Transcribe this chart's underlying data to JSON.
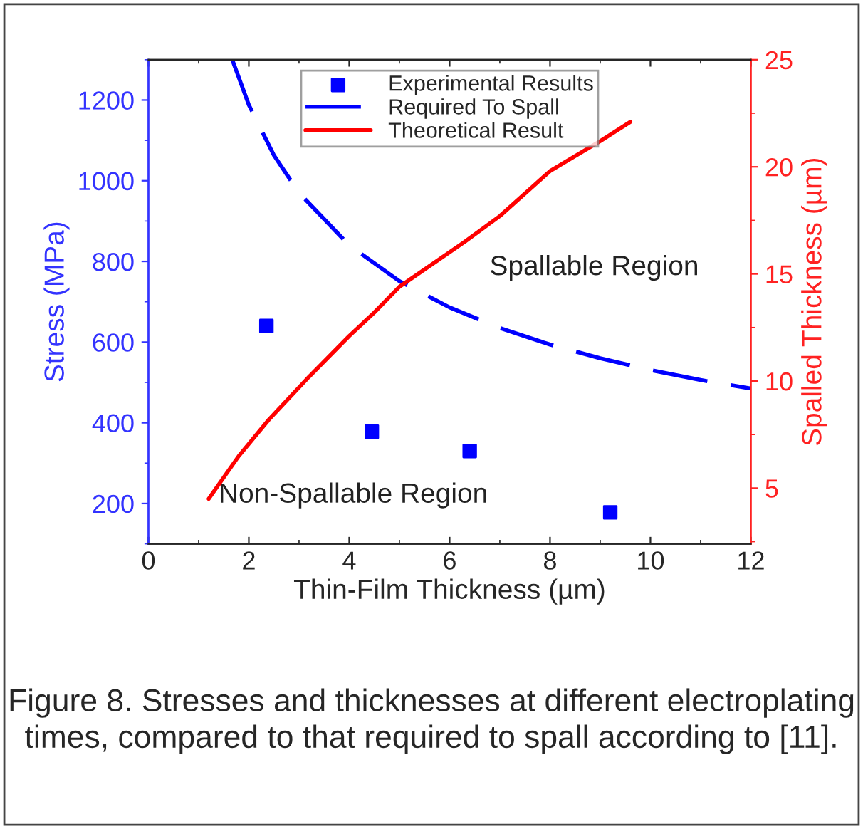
{
  "chart_data": {
    "type": "scatter",
    "xlabel": "Thin-Film Thickness (µm)",
    "ylabel": "Stress (MPa)",
    "y2label": "Spalled Thickness (µm)",
    "xlim": [
      0,
      12
    ],
    "xticks": [
      0,
      2,
      4,
      6,
      8,
      10,
      12
    ],
    "ylim": [
      100,
      1300
    ],
    "yticks": [
      200,
      400,
      600,
      800,
      1000,
      1200
    ],
    "y2lim": [
      2.4,
      25
    ],
    "y2ticks": [
      5,
      10,
      15,
      20,
      25
    ],
    "legend": "top",
    "grid": false,
    "series": [
      {
        "name": "Experimental Results",
        "marker": "square",
        "color": "#0000ff",
        "x": [
          2.35,
          4.45,
          6.4,
          9.2
        ],
        "values": [
          640,
          378,
          330,
          178
        ]
      },
      {
        "name": "Required To Spall",
        "type": "line",
        "line_style": "dashed",
        "color": "#0000ff",
        "x": [
          1.67,
          2,
          2.5,
          3,
          4,
          5,
          6,
          7,
          8,
          9,
          10,
          11,
          12
        ],
        "values": [
          1300,
          1188,
          1063,
          970,
          840,
          751,
          686,
          635,
          594,
          560,
          531,
          506,
          485
        ]
      },
      {
        "name": "Theoretical Result",
        "type": "line",
        "line_style": "solid",
        "axis": "y2",
        "color": "#ff0000",
        "x": [
          1.2,
          1.8,
          2.4,
          3.2,
          4.0,
          4.5,
          5.0,
          6.3,
          7.0,
          8.0,
          9.0,
          9.6
        ],
        "values": [
          4.5,
          6.5,
          8.2,
          10.2,
          12.1,
          13.2,
          14.4,
          16.5,
          17.7,
          19.8,
          21.2,
          22.1
        ]
      }
    ],
    "annotations": [
      "Spallable Region",
      "Non-Spallable Region",
      "Figure 8. Stresses and thicknesses at different electroplating times, compared to that required to spall according to [11]."
    ]
  }
}
